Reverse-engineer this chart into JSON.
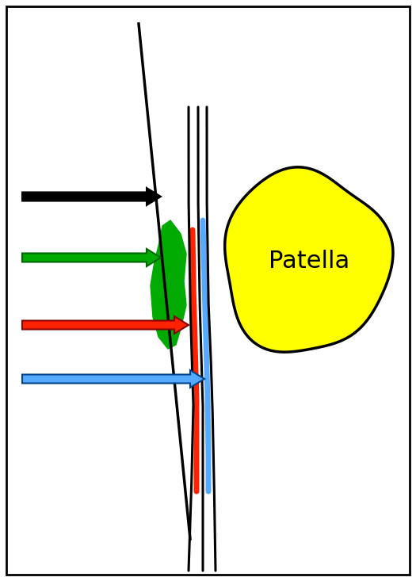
{
  "background_color": "#ffffff",
  "border_color": "#000000",
  "patella_color": "#ffff00",
  "patella_outline": "#000000",
  "green_blob_color": "#00aa00",
  "red_line_color": "#ff2200",
  "blue_line_color": "#55aaff",
  "black_arrow_color": "#000000",
  "green_arrow_color": "#00aa00",
  "red_arrow_color": "#ff2200",
  "blue_arrow_color": "#55aaff",
  "label_text": "Patella",
  "label_fontsize": 22,
  "label_color": "#000000"
}
